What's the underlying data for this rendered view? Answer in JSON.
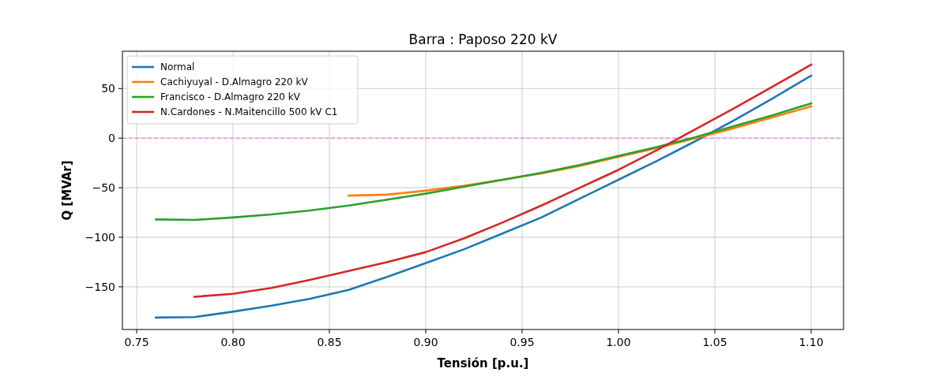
{
  "chart_data": {
    "type": "line",
    "title": "Barra : Paposo 220 kV",
    "xlabel": "Tensión [p.u.]",
    "ylabel": "Q [MVAr]",
    "xlim": [
      0.7426,
      1.1168
    ],
    "ylim": [
      -193,
      87.6
    ],
    "xticks": [
      {
        "value": 0.75,
        "label": "0.75"
      },
      {
        "value": 0.8,
        "label": "0.80"
      },
      {
        "value": 0.85,
        "label": "0.85"
      },
      {
        "value": 0.9,
        "label": "0.90"
      },
      {
        "value": 0.95,
        "label": "0.95"
      },
      {
        "value": 1.0,
        "label": "1.00"
      },
      {
        "value": 1.05,
        "label": "1.05"
      },
      {
        "value": 1.1,
        "label": "1.10"
      }
    ],
    "yticks": [
      {
        "value": -150,
        "label": "−150"
      },
      {
        "value": -100,
        "label": "−100"
      },
      {
        "value": -50,
        "label": "−50"
      },
      0,
      50
    ],
    "grid": true,
    "legend": "top left",
    "line_style": "solid",
    "marker": "none",
    "ref_lines": [
      {
        "axis": "y",
        "value": 0,
        "color": "#ee66ee",
        "line_style": "dashed"
      }
    ],
    "series": [
      {
        "name": "Normal",
        "color": "#1f77b4",
        "x": [
          0.76,
          0.78,
          0.8,
          0.82,
          0.84,
          0.86,
          0.88,
          0.9,
          0.92,
          0.94,
          0.96,
          0.98,
          1.0,
          1.02,
          1.04,
          1.06,
          1.08,
          1.1
        ],
        "values": [
          -181,
          -180.5,
          -175,
          -169,
          -162,
          -153,
          -140,
          -126,
          -112,
          -96,
          -80,
          -61,
          -42,
          -23,
          -3,
          18,
          40,
          63
        ]
      },
      {
        "name": "Cachiyuyal - D.Almagro 220 kV",
        "color": "#ff7f0e",
        "x": [
          0.86,
          0.88,
          0.9,
          0.92,
          0.94,
          0.96,
          0.98,
          1.0,
          1.02,
          1.04,
          1.06,
          1.08,
          1.1
        ],
        "values": [
          -58,
          -57,
          -53,
          -48,
          -42,
          -35.5,
          -28,
          -19,
          -10,
          0,
          10,
          21,
          32
        ]
      },
      {
        "name": "Francisco - D.Almagro 220 kV",
        "color": "#2ca02c",
        "x": [
          0.76,
          0.78,
          0.8,
          0.82,
          0.84,
          0.86,
          0.88,
          0.9,
          0.92,
          0.94,
          0.96,
          0.98,
          1.0,
          1.02,
          1.04,
          1.06,
          1.08,
          1.1
        ],
        "values": [
          -82,
          -82.5,
          -80,
          -77,
          -73,
          -68,
          -62,
          -56,
          -49,
          -42,
          -35,
          -27,
          -18,
          -9,
          1,
          12,
          23,
          35
        ]
      },
      {
        "name": "N.Cardones - N.Maitencillo 500 kV C1",
        "color": "#d62728",
        "x": [
          0.78,
          0.8,
          0.82,
          0.84,
          0.86,
          0.88,
          0.9,
          0.92,
          0.94,
          0.96,
          0.98,
          1.0,
          1.02,
          1.04,
          1.06,
          1.08,
          1.1
        ],
        "values": [
          -160,
          -157,
          -151,
          -143,
          -134,
          -125,
          -115,
          -101,
          -85,
          -68,
          -50,
          -32,
          -12,
          9,
          30,
          52,
          74
        ]
      }
    ]
  }
}
